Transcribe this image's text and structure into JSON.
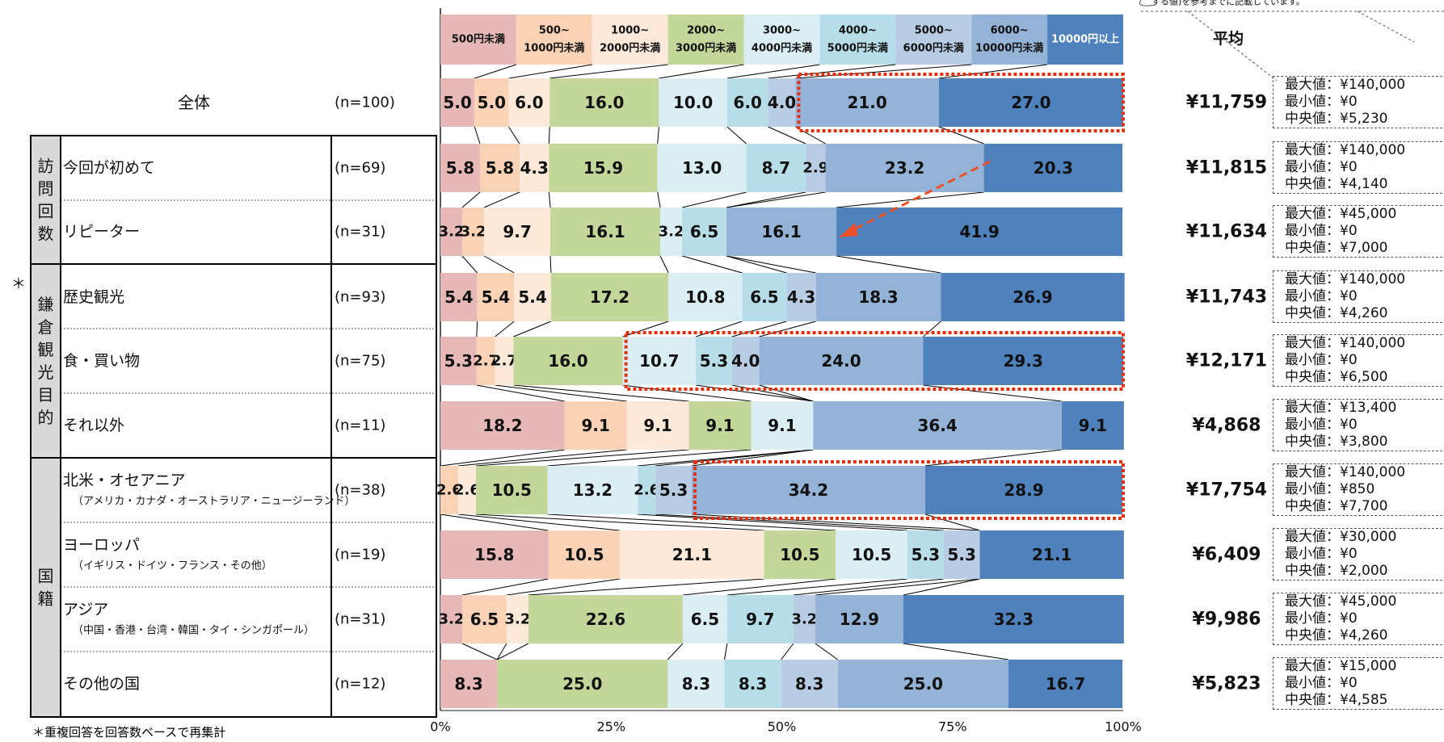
{
  "chart_data": {
    "type": "bar",
    "stacked": "percent",
    "orientation": "horizontal",
    "xlim": [
      0,
      100
    ],
    "ticks": [
      "0%",
      "25%",
      "50%",
      "75%",
      "100%"
    ],
    "categories": [
      {
        "label": "500円未満",
        "color": "#E6B9B8"
      },
      {
        "label": "500~\n1000円未満",
        "color": "#FAD3B6"
      },
      {
        "label": "1000~\n2000円未満",
        "color": "#FDE9DA"
      },
      {
        "label": "2000~\n3000円未満",
        "color": "#C4D79B"
      },
      {
        "label": "3000~\n4000円未満",
        "color": "#DAEEF3"
      },
      {
        "label": "4000~\n5000円未満",
        "color": "#B7DEE8"
      },
      {
        "label": "5000~\n6000円未満",
        "color": "#B8CCE4"
      },
      {
        "label": "6000~\n10000円未満",
        "color": "#95B3D7"
      },
      {
        "label": "10000円以上",
        "color": "#4F81BD"
      }
    ],
    "rows": [
      {
        "label": "全体",
        "sub": "",
        "n": "(n=100)",
        "values": [
          5.0,
          5.0,
          6.0,
          16.0,
          10.0,
          6.0,
          4.0,
          21.0,
          27.0
        ],
        "avg": "¥11,759",
        "max": "最大値：¥140,000",
        "min": "最小値：¥0",
        "median": "中央値：¥5,230"
      },
      {
        "label": "今回が初めて",
        "sub": "",
        "n": "(n=69)",
        "values": [
          5.8,
          5.8,
          4.3,
          15.9,
          13.0,
          8.7,
          2.9,
          23.2,
          20.3
        ],
        "avg": "¥11,815",
        "max": "最大値：¥140,000",
        "min": "最小値：¥0",
        "median": "中央値：¥4,140"
      },
      {
        "label": "リピーター",
        "sub": "",
        "n": "(n=31)",
        "values": [
          3.2,
          3.2,
          9.7,
          16.1,
          3.2,
          6.5,
          0.0,
          16.1,
          41.9
        ],
        "avg": "¥11,634",
        "max": "最大値：¥45,000",
        "min": "最小値：¥0",
        "median": "中央値：¥7,000"
      },
      {
        "label": "歴史観光",
        "sub": "",
        "n": "(n=93)",
        "values": [
          5.4,
          5.4,
          5.4,
          17.2,
          10.8,
          6.5,
          4.3,
          18.3,
          26.9
        ],
        "avg": "¥11,743",
        "max": "最大値：¥140,000",
        "min": "最小値：¥0",
        "median": "中央値：¥4,260"
      },
      {
        "label": "食・買い物",
        "sub": "",
        "n": "(n=75)",
        "values": [
          5.3,
          2.7,
          2.7,
          16.0,
          10.7,
          5.3,
          4.0,
          24.0,
          29.3
        ],
        "avg": "¥12,171",
        "max": "最大値：¥140,000",
        "min": "最小値：¥0",
        "median": "中央値：¥6,500"
      },
      {
        "label": "それ以外",
        "sub": "",
        "n": "(n=11)",
        "values": [
          18.2,
          9.1,
          9.1,
          9.1,
          9.1,
          0.0,
          0.0,
          36.4,
          9.1
        ],
        "avg": "¥4,868",
        "max": "最大値：¥13,400",
        "min": "最小値：¥0",
        "median": "中央値：¥3,800"
      },
      {
        "label": "北米・オセアニア",
        "sub": "（アメリカ・カナダ・オーストラリア・ニュージーランド）",
        "n": "(n=38)",
        "values": [
          0.0,
          2.6,
          2.6,
          10.5,
          13.2,
          2.6,
          5.3,
          34.2,
          28.9
        ],
        "avg": "¥17,754",
        "max": "最大値：¥140,000",
        "min": "最小値：¥850",
        "median": "中央値：¥7,700"
      },
      {
        "label": "ヨーロッパ",
        "sub": "（イギリス・ドイツ・フランス・その他）",
        "n": "(n=19)",
        "values": [
          15.8,
          10.5,
          21.1,
          10.5,
          10.5,
          5.3,
          5.3,
          0.0,
          21.1
        ],
        "avg": "¥6,409",
        "max": "最大値：¥30,000",
        "min": "最小値：¥0",
        "median": "中央値：¥2,000"
      },
      {
        "label": "アジア",
        "sub": "（中国・香港・台湾・韓国・タイ・シンガポール）",
        "n": "(n=31)",
        "values": [
          3.2,
          6.5,
          3.2,
          22.6,
          6.5,
          9.7,
          3.2,
          12.9,
          32.3
        ],
        "avg": "¥9,986",
        "max": "最大値：¥45,000",
        "min": "最小値：¥0",
        "median": "中央値：¥4,260"
      },
      {
        "label": "その他の国",
        "sub": "",
        "n": "(n=12)",
        "values": [
          8.3,
          0.0,
          0.0,
          25.0,
          8.3,
          8.3,
          8.3,
          25.0,
          16.7
        ],
        "avg": "¥5,823",
        "max": "最大値：¥15,000",
        "min": "最小値：¥0",
        "median": "中央値：¥4,585"
      }
    ],
    "groups": [
      {
        "label": "訪問回数"
      },
      {
        "label": "鎌倉観光目的"
      },
      {
        "label": "国籍"
      }
    ],
    "average_header": "平均",
    "highlights": [
      0,
      4,
      6
    ],
    "asterisk": "＊",
    "footnote": "＊重複回答を回答数ベースで再集計",
    "callout_text": "する値)を参考までに記載しています。"
  }
}
